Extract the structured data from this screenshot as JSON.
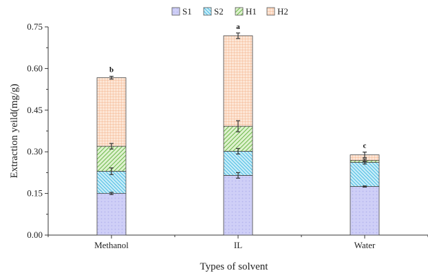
{
  "chart_data": {
    "type": "bar",
    "stacked": true,
    "categories": [
      "Methanol",
      "IL",
      "Water"
    ],
    "xlabel": "Types of solvent",
    "ylabel": "Extraction yeild(mg/g)",
    "ylim": [
      0,
      0.75
    ],
    "yticks": [
      "0.00",
      "0.15",
      "0.30",
      "0.45",
      "0.60",
      "0.75"
    ],
    "legend_position": "top-center",
    "grid": false,
    "series": [
      {
        "name": "S1",
        "values": [
          0.15,
          0.215,
          0.175
        ],
        "errors": [
          0.004,
          0.01,
          0.002
        ],
        "color": "#cfcff7",
        "pattern": "dots"
      },
      {
        "name": "S2",
        "values": [
          0.08,
          0.087,
          0.087
        ],
        "errors": [
          0.012,
          0.01,
          0.006
        ],
        "color": "#bfe8f5",
        "pattern": "backslash"
      },
      {
        "name": "H1",
        "values": [
          0.09,
          0.09,
          0.007
        ],
        "errors": [
          0.01,
          0.02,
          0.005
        ],
        "color": "#d6efc4",
        "pattern": "slash"
      },
      {
        "name": "H2",
        "values": [
          0.247,
          0.326,
          0.02
        ],
        "errors": [
          0.005,
          0.01,
          0.01
        ],
        "color": "#fbd9c5",
        "pattern": "grid"
      }
    ],
    "significance_labels": [
      "b",
      "a",
      "c"
    ]
  }
}
